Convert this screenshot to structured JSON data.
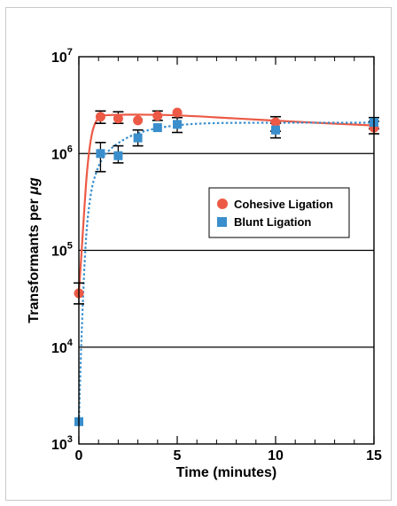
{
  "chart_data": {
    "type": "scatter",
    "title": "",
    "xlabel": "Time (minutes)",
    "ylabel_prefix": "Transformants per ",
    "ylabel_unit": "μg",
    "x_scale": "linear",
    "y_scale": "log",
    "xlim": [
      0,
      15
    ],
    "ylim": [
      1000,
      10000000
    ],
    "x_ticks": [
      0,
      5,
      10,
      15
    ],
    "x_minor_ticks": [
      1,
      2,
      3,
      4,
      6,
      7,
      8,
      9,
      11,
      12,
      13,
      14
    ],
    "y_ticks": [
      {
        "value": 1000,
        "base": "10",
        "exp": "3"
      },
      {
        "value": 10000,
        "base": "10",
        "exp": "4"
      },
      {
        "value": 100000,
        "base": "10",
        "exp": "5"
      },
      {
        "value": 1000000,
        "base": "10",
        "exp": "6"
      },
      {
        "value": 10000000,
        "base": "10",
        "exp": "7"
      }
    ],
    "gridlines_y": [
      10000,
      100000,
      1000000
    ],
    "legend_position": "center-right",
    "series": [
      {
        "name": "Cohesive Ligation",
        "marker": "circle",
        "color": "#ec5a46",
        "line_style": "solid",
        "points": [
          {
            "x": 0,
            "y": 36000,
            "err_low": 28000,
            "err_high": 46000
          },
          {
            "x": 1.1,
            "y": 2400000,
            "err_low": 2050000,
            "err_high": 2750000
          },
          {
            "x": 2,
            "y": 2300000,
            "err_low": 2050000,
            "err_high": 2700000
          },
          {
            "x": 3,
            "y": 2200000
          },
          {
            "x": 4,
            "y": 2450000,
            "err_low": 2200000,
            "err_high": 2750000
          },
          {
            "x": 5,
            "y": 2650000
          },
          {
            "x": 10,
            "y": 2100000,
            "err_low": 1700000,
            "err_high": 2400000
          },
          {
            "x": 15,
            "y": 1850000,
            "err_low": 1600000,
            "err_high": 2150000
          }
        ],
        "fit": [
          [
            0,
            36000
          ],
          [
            0.2,
            150000
          ],
          [
            0.4,
            600000
          ],
          [
            0.6,
            1350000
          ],
          [
            0.8,
            2000000
          ],
          [
            1.1,
            2400000
          ],
          [
            1.6,
            2500000
          ],
          [
            3,
            2520000
          ],
          [
            5,
            2480000
          ],
          [
            8,
            2300000
          ],
          [
            11,
            2130000
          ],
          [
            15,
            1950000
          ]
        ]
      },
      {
        "name": "Blunt Ligation",
        "marker": "square",
        "color": "#3a8ecc",
        "line_style": "dotted",
        "points": [
          {
            "x": 0,
            "y": 1700
          },
          {
            "x": 1.1,
            "y": 1000000,
            "err_low": 650000,
            "err_high": 1300000
          },
          {
            "x": 2,
            "y": 950000,
            "err_low": 800000,
            "err_high": 1200000
          },
          {
            "x": 3,
            "y": 1450000,
            "err_low": 1200000,
            "err_high": 1750000
          },
          {
            "x": 4,
            "y": 1850000
          },
          {
            "x": 5,
            "y": 2000000,
            "err_low": 1650000,
            "err_high": 2350000
          },
          {
            "x": 10,
            "y": 1750000,
            "err_low": 1450000,
            "err_high": 2050000
          },
          {
            "x": 15,
            "y": 2100000,
            "err_low": 1800000,
            "err_high": 2350000
          }
        ],
        "fit": [
          [
            0,
            1700
          ],
          [
            0.15,
            15000
          ],
          [
            0.35,
            120000
          ],
          [
            0.6,
            370000
          ],
          [
            0.9,
            650000
          ],
          [
            1.3,
            950000
          ],
          [
            2,
            1280000
          ],
          [
            3,
            1620000
          ],
          [
            4.5,
            1900000
          ],
          [
            6.5,
            2050000
          ],
          [
            10,
            2080000
          ],
          [
            15,
            2080000
          ]
        ]
      }
    ]
  }
}
